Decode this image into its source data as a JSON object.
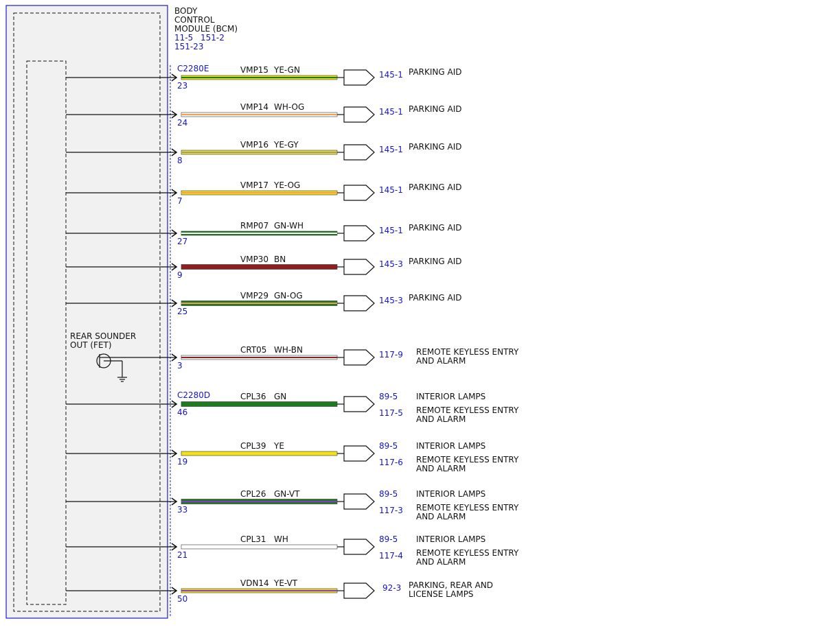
{
  "module": {
    "title_lines": [
      "BODY",
      "CONTROL",
      "MODULE (BCM)"
    ],
    "refs_line1": [
      "11-5",
      "151-2"
    ],
    "refs_line2": "151-23"
  },
  "connectors": [
    {
      "name": "C2280E",
      "before_row": 0
    },
    {
      "name": "C2280D",
      "before_row": 8
    }
  ],
  "internal": {
    "sounder_label_lines": [
      "REAR SOUNDER",
      "OUT (FET)"
    ]
  },
  "colors": {
    "module_border": "#1a1ad0",
    "module_fill": "#f1f1f1",
    "page_ref": "#1414c8",
    "YE": "#f2e21a",
    "GN": "#1e7a1e",
    "WH": "#ffffff",
    "OG": "#f0a050",
    "GY": "#9a9a9a",
    "BN": "#8e1f1f",
    "VT": "#8a3ac8"
  },
  "wires": [
    {
      "pin": "23",
      "circuit": "VMP15",
      "color": "YE-GN",
      "base": "YE",
      "stripe": "GN",
      "heavy": false,
      "dests": [
        {
          "ref": "145-1",
          "lines": [
            "PARKING AID"
          ]
        }
      ]
    },
    {
      "pin": "24",
      "circuit": "VMP14",
      "color": "WH-OG",
      "base": "WH",
      "stripe": "OG",
      "heavy": false,
      "dests": [
        {
          "ref": "145-1",
          "lines": [
            "PARKING AID"
          ]
        }
      ]
    },
    {
      "pin": "8",
      "circuit": "VMP16",
      "color": "YE-GY",
      "base": "YE",
      "stripe": "GY",
      "heavy": false,
      "dests": [
        {
          "ref": "145-1",
          "lines": [
            "PARKING AID"
          ]
        }
      ]
    },
    {
      "pin": "7",
      "circuit": "VMP17",
      "color": "YE-OG",
      "base": "YE",
      "stripe": "OG",
      "heavy": false,
      "dests": [
        {
          "ref": "145-1",
          "lines": [
            "PARKING AID"
          ]
        }
      ]
    },
    {
      "pin": "27",
      "circuit": "RMP07",
      "color": "GN-WH",
      "base": "GN",
      "stripe": "WH",
      "heavy": false,
      "dests": [
        {
          "ref": "145-1",
          "lines": [
            "PARKING AID"
          ]
        }
      ]
    },
    {
      "pin": "9",
      "circuit": "VMP30",
      "color": "BN",
      "base": "BN",
      "stripe": null,
      "heavy": true,
      "dests": [
        {
          "ref": "145-3",
          "lines": [
            "PARKING AID"
          ]
        }
      ]
    },
    {
      "pin": "25",
      "circuit": "VMP29",
      "color": "GN-OG",
      "base": "GN",
      "stripe": "OG",
      "heavy": true,
      "dests": [
        {
          "ref": "145-3",
          "lines": [
            "PARKING AID"
          ]
        }
      ]
    },
    {
      "pin": "3",
      "circuit": "CRT05",
      "color": "WH-BN",
      "base": "WH",
      "stripe": "BN",
      "heavy": false,
      "dests": [
        {
          "ref": "117-9",
          "lines": [
            "REMOTE KEYLESS ENTRY",
            "AND ALARM"
          ]
        }
      ]
    },
    {
      "pin": "46",
      "circuit": "CPL36",
      "color": "GN",
      "base": "GN",
      "stripe": null,
      "heavy": true,
      "dests": [
        {
          "ref": "89-5",
          "lines": [
            "INTERIOR LAMPS"
          ]
        },
        {
          "ref": "117-5",
          "lines": [
            "REMOTE KEYLESS ENTRY",
            "AND ALARM"
          ]
        }
      ]
    },
    {
      "pin": "19",
      "circuit": "CPL39",
      "color": "YE",
      "base": "YE",
      "stripe": null,
      "heavy": false,
      "dests": [
        {
          "ref": "89-5",
          "lines": [
            "INTERIOR LAMPS"
          ]
        },
        {
          "ref": "117-6",
          "lines": [
            "REMOTE KEYLESS ENTRY",
            "AND ALARM"
          ]
        }
      ]
    },
    {
      "pin": "33",
      "circuit": "CPL26",
      "color": "GN-VT",
      "base": "GN",
      "stripe": "VT",
      "heavy": true,
      "dests": [
        {
          "ref": "89-5",
          "lines": [
            "INTERIOR LAMPS"
          ]
        },
        {
          "ref": "117-3",
          "lines": [
            "REMOTE KEYLESS ENTRY",
            "AND ALARM"
          ]
        }
      ]
    },
    {
      "pin": "21",
      "circuit": "CPL31",
      "color": "WH",
      "base": "WH",
      "stripe": null,
      "heavy": false,
      "dests": [
        {
          "ref": "89-5",
          "lines": [
            "INTERIOR LAMPS"
          ]
        },
        {
          "ref": "117-4",
          "lines": [
            "REMOTE KEYLESS ENTRY",
            "AND ALARM"
          ]
        }
      ]
    },
    {
      "pin": "50",
      "circuit": "VDN14",
      "color": "YE-VT",
      "base": "YE",
      "stripe": "VT",
      "heavy": false,
      "dests": [
        {
          "ref": "92-3",
          "lines": [
            "PARKING, REAR AND",
            "LICENSE LAMPS"
          ]
        }
      ]
    }
  ]
}
